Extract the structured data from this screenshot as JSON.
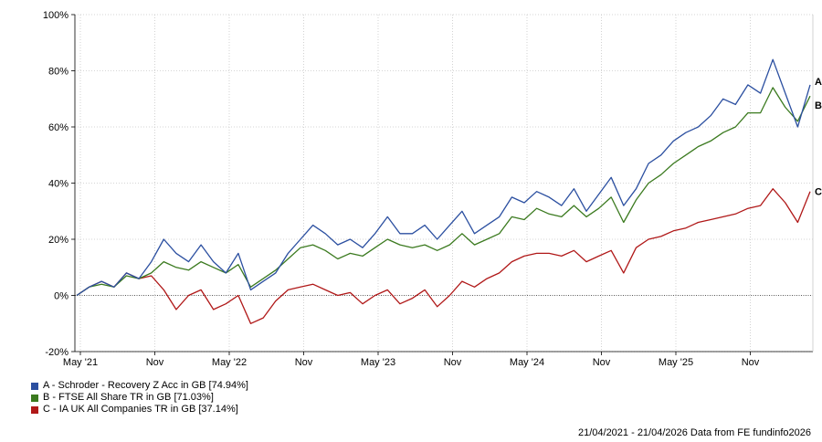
{
  "chart_data": {
    "type": "line",
    "ylim": [
      -20,
      100
    ],
    "y_ticks": [
      "-20%",
      "0%",
      "20%",
      "40%",
      "60%",
      "80%",
      "100%"
    ],
    "x_ticks": [
      "May '21",
      "Nov",
      "May '22",
      "Nov",
      "May '23",
      "Nov",
      "May '24",
      "Nov",
      "May '25",
      "Nov"
    ],
    "grid": true,
    "legend_position": "bottom-left",
    "series": [
      {
        "name": "A - Schroder - Recovery Z Acc in GB [74.94%]",
        "end_label": "A",
        "color": "#2b4fa0",
        "values": [
          0,
          3,
          5,
          3,
          8,
          6,
          12,
          20,
          15,
          12,
          18,
          12,
          8,
          15,
          2,
          5,
          8,
          15,
          20,
          25,
          22,
          18,
          20,
          17,
          22,
          28,
          22,
          22,
          25,
          20,
          25,
          30,
          22,
          25,
          28,
          35,
          33,
          37,
          35,
          32,
          38,
          30,
          36,
          42,
          32,
          38,
          47,
          50,
          55,
          58,
          60,
          64,
          70,
          68,
          75,
          72,
          84,
          72,
          60,
          75
        ]
      },
      {
        "name": "B - FTSE All Share TR in GB [71.03%]",
        "end_label": "B",
        "color": "#3b7a1f",
        "values": [
          0,
          3,
          4,
          3,
          7,
          6,
          8,
          12,
          10,
          9,
          12,
          10,
          8,
          11,
          3,
          6,
          9,
          13,
          17,
          18,
          16,
          13,
          15,
          14,
          17,
          20,
          18,
          17,
          18,
          16,
          18,
          22,
          18,
          20,
          22,
          28,
          27,
          31,
          29,
          28,
          32,
          28,
          31,
          35,
          26,
          34,
          40,
          43,
          47,
          50,
          53,
          55,
          58,
          60,
          65,
          65,
          74,
          67,
          62,
          71
        ]
      },
      {
        "name": "C - IA UK All Companies TR in GB [37.14%]",
        "end_label": "C",
        "color": "#b01818",
        "values": [
          0,
          3,
          5,
          3,
          8,
          6,
          7,
          2,
          -5,
          0,
          2,
          -5,
          -3,
          0,
          -10,
          -8,
          -2,
          2,
          3,
          4,
          2,
          0,
          1,
          -3,
          0,
          2,
          -3,
          -1,
          2,
          -4,
          0,
          5,
          3,
          6,
          8,
          12,
          14,
          15,
          15,
          14,
          16,
          12,
          14,
          16,
          8,
          17,
          20,
          21,
          23,
          24,
          26,
          27,
          28,
          29,
          31,
          32,
          38,
          33,
          26,
          37
        ]
      }
    ]
  },
  "footer": {
    "text": "21/04/2021 - 21/04/2026 Data from FE fundinfo2026"
  }
}
